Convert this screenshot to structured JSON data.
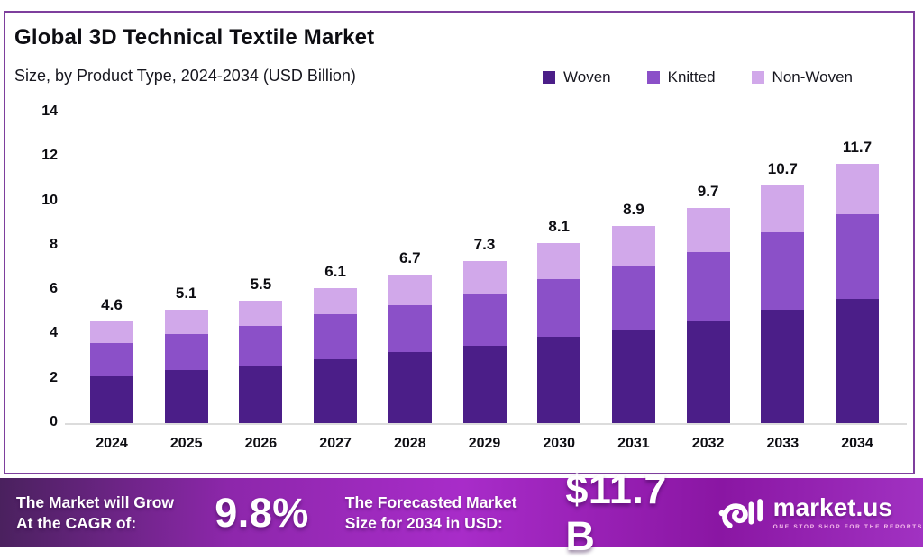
{
  "header": {
    "title": "Global 3D Technical Textile Market",
    "subtitle": "Size, by Product Type, 2024-2034 (USD Billion)"
  },
  "colors": {
    "woven": "#4b1e88",
    "knitted": "#8b50c8",
    "non_woven": "#d1a8ea",
    "border": "#7e3f9d",
    "banner_gradient": [
      "#4a215e",
      "#a82cc9",
      "#a132c2"
    ]
  },
  "legend": [
    {
      "label": "Woven",
      "color": "#4b1e88"
    },
    {
      "label": "Knitted",
      "color": "#8b50c8"
    },
    {
      "label": "Non-Woven",
      "color": "#d1a8ea"
    }
  ],
  "chart_data": {
    "type": "bar",
    "stacked": true,
    "title": "Global 3D Technical Textile Market",
    "subtitle": "Size, by Product Type, 2024-2034 (USD Billion)",
    "xlabel": "",
    "ylabel": "",
    "ylim": [
      0,
      14
    ],
    "yticks": [
      0,
      2,
      4,
      6,
      8,
      10,
      12,
      14
    ],
    "grid": false,
    "legend_position": "top-right",
    "categories": [
      "2024",
      "2025",
      "2026",
      "2027",
      "2028",
      "2029",
      "2030",
      "2031",
      "2032",
      "2033",
      "2034"
    ],
    "series": [
      {
        "name": "Woven",
        "color": "#4b1e88",
        "values": [
          2.1,
          2.4,
          2.6,
          2.9,
          3.2,
          3.5,
          3.9,
          4.2,
          4.6,
          5.1,
          5.6
        ]
      },
      {
        "name": "Knitted",
        "color": "#8b50c8",
        "values": [
          1.5,
          1.6,
          1.8,
          2.0,
          2.1,
          2.3,
          2.6,
          2.9,
          3.1,
          3.5,
          3.8
        ]
      },
      {
        "name": "Non-Woven",
        "color": "#d1a8ea",
        "values": [
          1.0,
          1.1,
          1.1,
          1.2,
          1.4,
          1.5,
          1.6,
          1.8,
          2.0,
          2.1,
          2.3
        ]
      }
    ],
    "totals": [
      "4.6",
      "5.1",
      "5.5",
      "6.1",
      "6.7",
      "7.3",
      "8.1",
      "8.9",
      "9.7",
      "10.7",
      "11.7"
    ]
  },
  "footer": {
    "cagr_label_line1": "The Market will Grow",
    "cagr_label_line2": "At the CAGR of:",
    "cagr_value": "9.8%",
    "forecast_label_line1": "The Forecasted Market",
    "forecast_label_line2": "Size for 2034 in USD:",
    "forecast_value": "$11.7 B",
    "brand": {
      "name": "market.us",
      "tagline": "ONE STOP SHOP FOR THE REPORTS"
    }
  }
}
